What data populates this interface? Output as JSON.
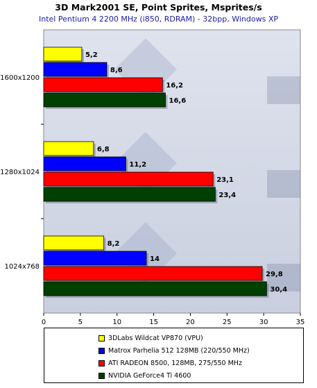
{
  "title": "3D Mark2001 SE, Point Sprites, Msprites/s",
  "subtitle": "Intel Pentium 4 2200 MHz (i850, RDRAM) - 32bpp, Windows XP",
  "chart_data": {
    "type": "bar",
    "orientation": "horizontal",
    "title": "3D Mark2001 SE, Point Sprites, Msprites/s",
    "subtitle": "Intel Pentium 4 2200 MHz (i850, RDRAM) - 32bpp, Windows XP",
    "categories": [
      "1600x1200",
      "1280x1024",
      "1024x768"
    ],
    "xlim": [
      0,
      35
    ],
    "xticks": [
      0,
      5,
      10,
      15,
      20,
      25,
      30,
      35
    ],
    "series": [
      {
        "name": "3DLabs Wildcat VP870 (VPU)",
        "color": "#ffff00",
        "values": [
          5.2,
          6.8,
          8.2
        ],
        "labels": [
          "5,2",
          "6,8",
          "8,2"
        ]
      },
      {
        "name": "Matrox Parhelia 512 128MB (220/550 MHz)",
        "color": "#0000ff",
        "values": [
          8.6,
          11.2,
          14
        ],
        "labels": [
          "8,6",
          "11,2",
          "14"
        ]
      },
      {
        "name": "ATI RADEON 8500, 128MB, 275/550 MHz",
        "color": "#ff0000",
        "values": [
          16.2,
          23.1,
          29.8
        ],
        "labels": [
          "16,2",
          "23,1",
          "29,8"
        ]
      },
      {
        "name": "NVIDIA GeForce4 Ti 4600",
        "color": "#004000",
        "values": [
          16.6,
          23.4,
          30.4
        ],
        "labels": [
          "16,6",
          "23,4",
          "30,4"
        ]
      }
    ],
    "grid": false,
    "legend_position": "bottom"
  }
}
